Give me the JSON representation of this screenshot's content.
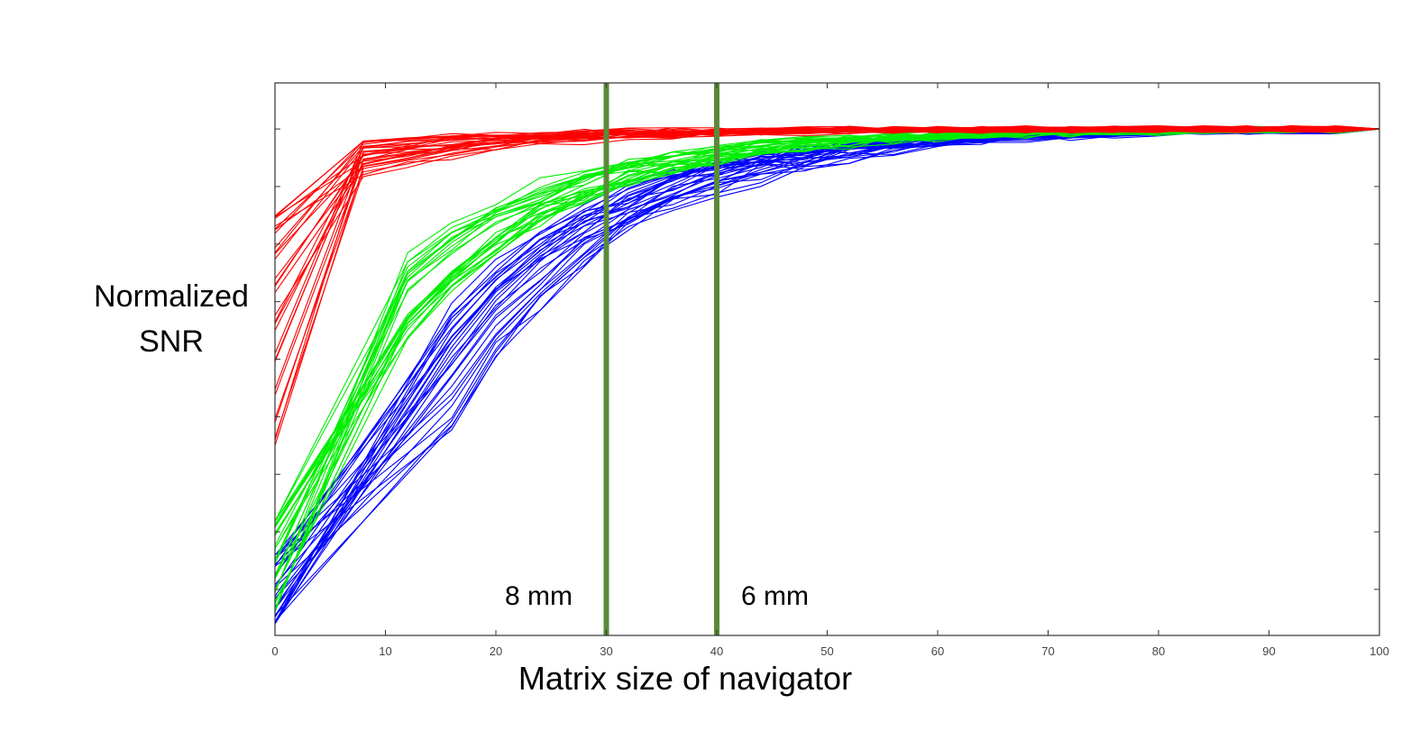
{
  "chart_data": {
    "type": "line",
    "xlabel": "Matrix size of navigator",
    "ylabel_lines": [
      "Normalized",
      "SNR"
    ],
    "xlim": [
      0,
      100
    ],
    "ylim": [
      0.12,
      1.08
    ],
    "x_ticks": [
      0,
      10,
      20,
      30,
      40,
      50,
      60,
      70,
      80,
      90,
      100
    ],
    "x_tick_labels": [
      "0",
      "10",
      "20",
      "30",
      "40",
      "50",
      "60",
      "70",
      "80",
      "90",
      "100"
    ],
    "y_tick_count": 9,
    "y_tick_labels_shown": false,
    "grid": false,
    "legend": "none",
    "x": [
      0,
      4,
      8,
      12,
      16,
      20,
      24,
      28,
      32,
      36,
      40,
      44,
      48,
      52,
      56,
      60,
      64,
      68,
      72,
      76,
      80,
      84,
      88,
      92,
      96,
      100
    ],
    "groups": [
      {
        "color": "#ff0000",
        "curve_count": 30,
        "start_range": [
          0.45,
          0.85
        ],
        "knee_x": 8,
        "knee_range": [
          0.88,
          0.98
        ],
        "end": 1.0
      },
      {
        "color": "#00ee00",
        "curve_count": 30,
        "start_range": [
          0.16,
          0.32
        ],
        "knee_x": 12,
        "knee_range": [
          0.55,
          0.8
        ],
        "end": 1.0
      },
      {
        "color": "#0000ff",
        "curve_count": 30,
        "start_range": [
          0.14,
          0.26
        ],
        "knee_x": 16,
        "knee_range": [
          0.38,
          0.7
        ],
        "end": 1.0
      }
    ],
    "vertical_markers": [
      {
        "x": 30,
        "label": "8 mm",
        "label_side": "left",
        "color": "#5a8a3a"
      },
      {
        "x": 40,
        "label": "6 mm",
        "label_side": "right",
        "color": "#5a8a3a"
      }
    ]
  }
}
